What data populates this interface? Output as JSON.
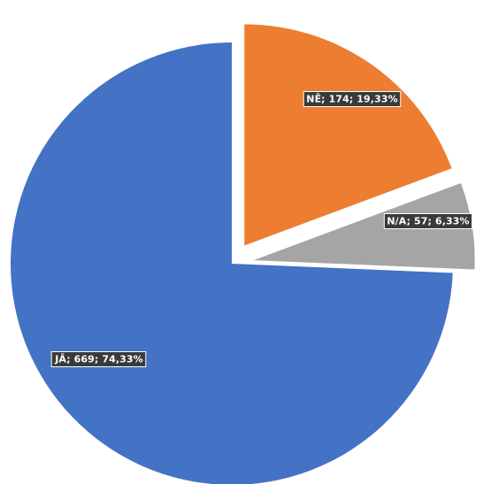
{
  "chart_data": {
    "type": "pie",
    "title": "",
    "legend": "none",
    "slices": [
      {
        "label": "JĀ",
        "value": 669,
        "percent": "74,33%",
        "display": "JĀ; 669; 74,33%",
        "color": "#4472C4",
        "exploded": false
      },
      {
        "label": "NĒ",
        "value": 174,
        "percent": "19,33%",
        "display": "NĒ; 174; 19,33%",
        "color": "#ED7D31",
        "exploded": true
      },
      {
        "label": "N/A",
        "value": 57,
        "percent": "6,33%",
        "display": "N/A; 57; 6,33%",
        "color": "#A5A5A5",
        "exploded": true
      }
    ]
  }
}
